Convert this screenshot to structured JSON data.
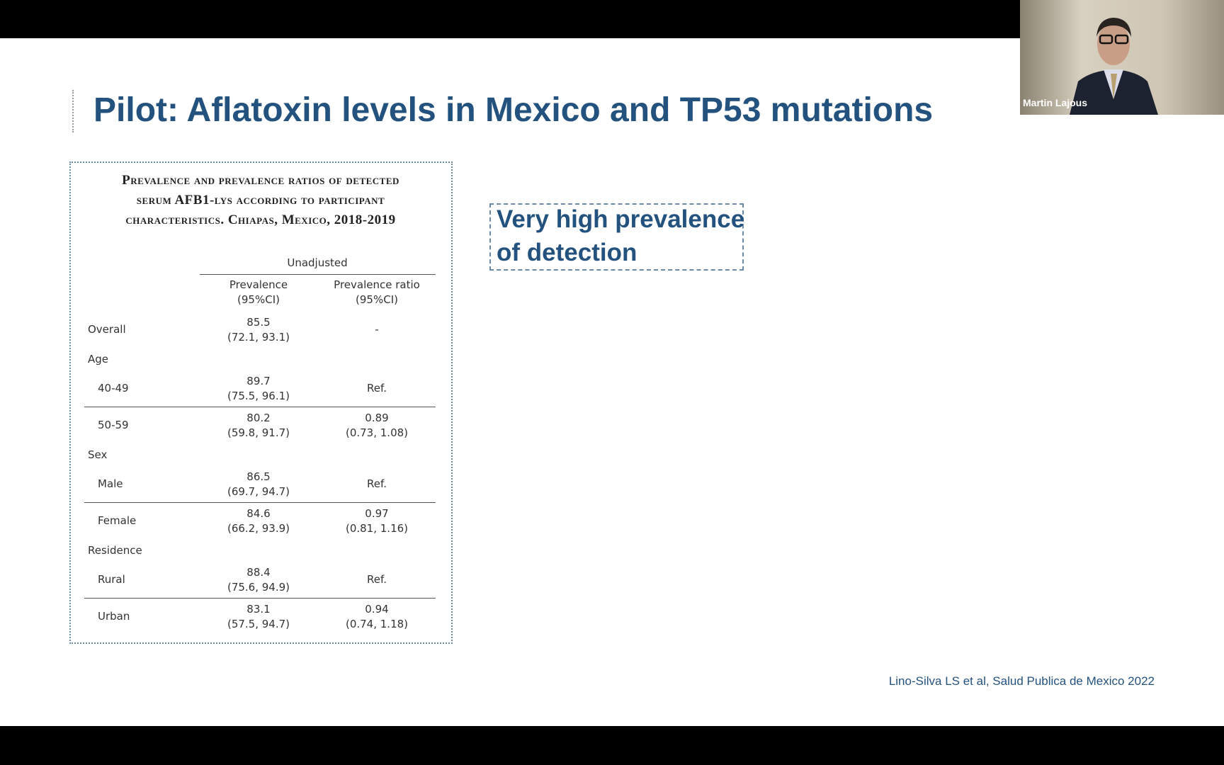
{
  "slide": {
    "title": "Pilot: Aflatoxin levels in Mexico and TP53 mutations",
    "table": {
      "title": [
        "Prevalence and prevalence ratios of detected",
        "serum AFB1-lys according to participant",
        "characteristics. Chiapas, Mexico, 2018-2019"
      ],
      "group_header": "Unadjusted",
      "columns": [
        [
          "Prevalence",
          "(95%CI)"
        ],
        [
          "Prevalence ratio",
          "(95%CI)"
        ]
      ],
      "overall": {
        "label": "Overall",
        "prevalence": [
          "85.5",
          "(72.1, 93.1)"
        ],
        "ratio": [
          "-"
        ]
      },
      "groups": [
        {
          "label": "Age",
          "rows": [
            {
              "label": "40-49",
              "prevalence": [
                "89.7",
                "(75.5, 96.1)"
              ],
              "ratio": [
                "Ref."
              ]
            },
            {
              "label": "50-59",
              "prevalence": [
                "80.2",
                "(59.8, 91.7)"
              ],
              "ratio": [
                "0.89",
                "(0.73, 1.08)"
              ]
            }
          ]
        },
        {
          "label": "Sex",
          "rows": [
            {
              "label": "Male",
              "prevalence": [
                "86.5",
                "(69.7, 94.7)"
              ],
              "ratio": [
                "Ref."
              ]
            },
            {
              "label": "Female",
              "prevalence": [
                "84.6",
                "(66.2, 93.9)"
              ],
              "ratio": [
                "0.97",
                "(0.81, 1.16)"
              ]
            }
          ]
        },
        {
          "label": "Residence",
          "rows": [
            {
              "label": "Rural",
              "prevalence": [
                "88.4",
                "(75.6, 94.9)"
              ],
              "ratio": [
                "Ref."
              ]
            },
            {
              "label": "Urban",
              "prevalence": [
                "83.1",
                "(57.5, 94.7)"
              ],
              "ratio": [
                "0.94",
                "(0.74, 1.18)"
              ]
            }
          ]
        }
      ]
    },
    "callout": [
      "Very high prevalence",
      "of detection"
    ],
    "citation": "Lino-Silva LS et al, Salud Publica de Mexico 2022"
  },
  "participant": {
    "name": "Martin Lajous"
  }
}
